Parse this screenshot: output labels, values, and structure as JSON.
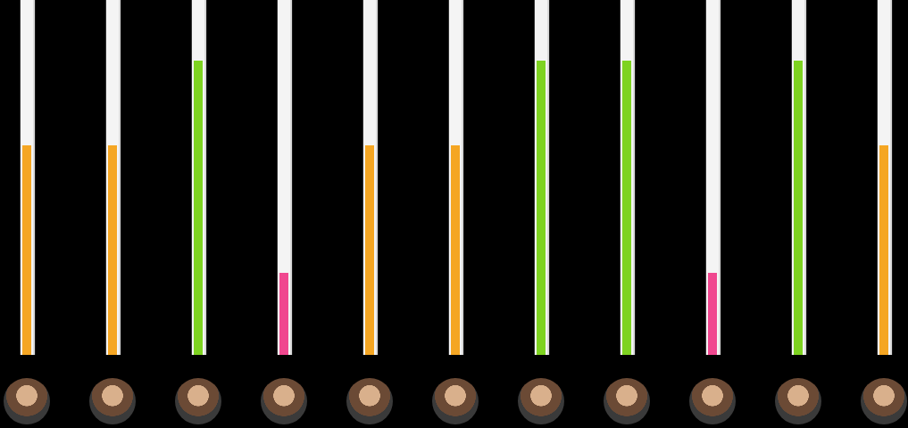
{
  "chart_data": {
    "type": "bar",
    "categories": [
      null,
      null,
      null,
      null,
      null,
      null,
      null,
      null,
      null,
      null,
      null
    ],
    "values": [
      59,
      59,
      83,
      23,
      59,
      59,
      83,
      83,
      23,
      83,
      59
    ],
    "colors": [
      "#f5a623",
      "#f5a623",
      "#7ed321",
      "#f0478f",
      "#f5a623",
      "#f5a623",
      "#7ed321",
      "#7ed321",
      "#f0478f",
      "#7ed321",
      "#f5a623"
    ],
    "ylim": [
      0,
      100
    ],
    "tick_labels": false,
    "grid": false
  }
}
